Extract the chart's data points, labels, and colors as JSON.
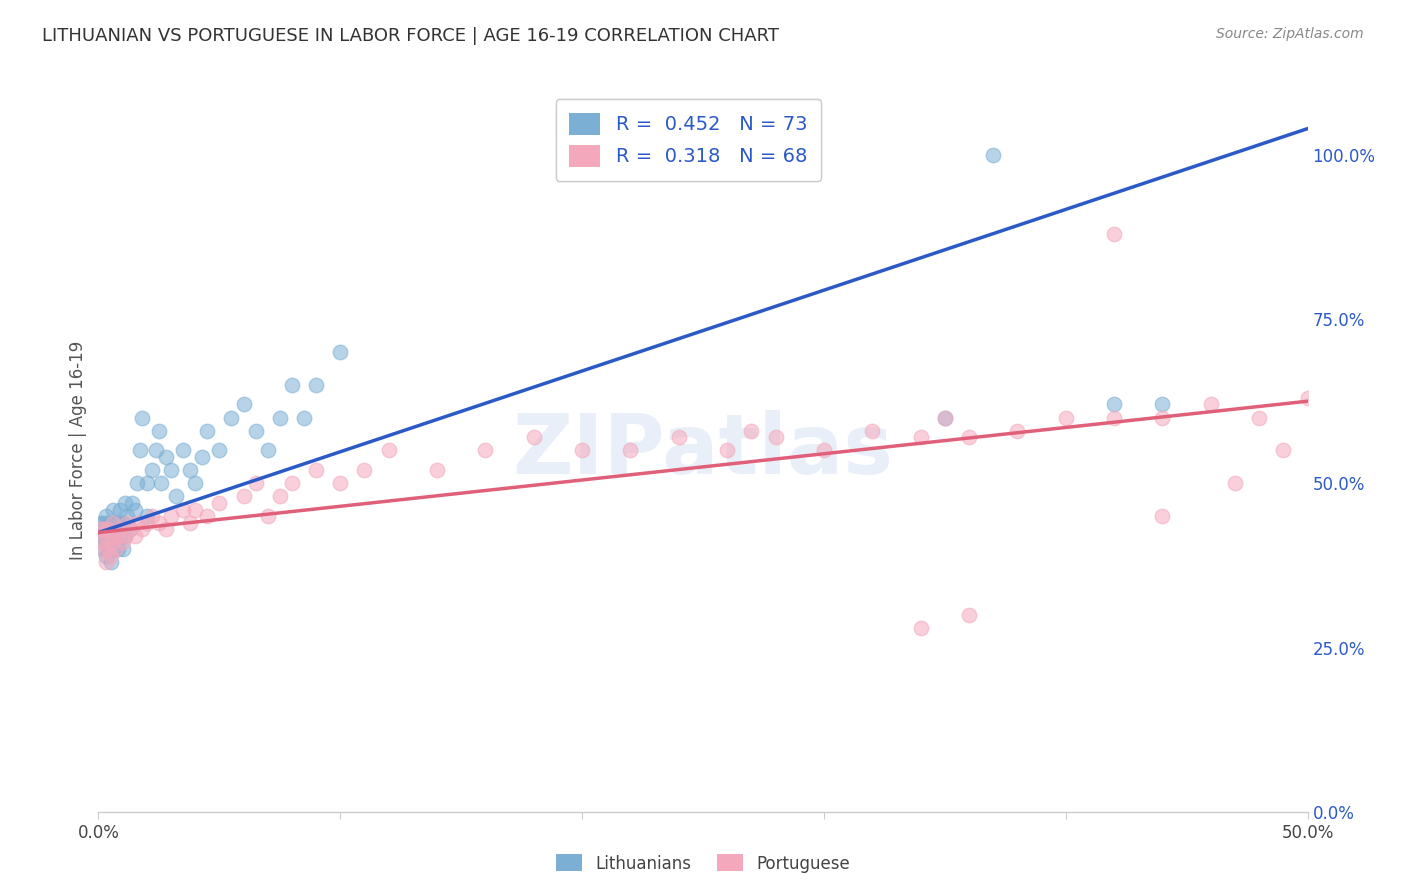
{
  "title": "LITHUANIAN VS PORTUGUESE IN LABOR FORCE | AGE 16-19 CORRELATION CHART",
  "source": "Source: ZipAtlas.com",
  "ylabel": "In Labor Force | Age 16-19",
  "xlim": [
    0.0,
    0.5
  ],
  "ylim": [
    0.0,
    1.1
  ],
  "xticks": [
    0.0,
    0.1,
    0.2,
    0.3,
    0.4,
    0.5
  ],
  "xticklabels": [
    "0.0%",
    "",
    "",
    "",
    "",
    "50.0%"
  ],
  "yticks_right": [
    0.0,
    0.25,
    0.5,
    0.75,
    1.0
  ],
  "yticklabels_right": [
    "0.0%",
    "25.0%",
    "50.0%",
    "75.0%",
    "100.0%"
  ],
  "legend_R_blue": "0.452",
  "legend_N_blue": "73",
  "legend_R_pink": "0.318",
  "legend_N_pink": "68",
  "watermark": "ZIPatlas",
  "blue_color": "#7BAFD4",
  "pink_color": "#F4A8BC",
  "blue_line_color": "#2B5AC8",
  "pink_line_color": "#E0607A",
  "title_color": "#333333",
  "right_tick_color": "#2B5AC8",
  "background_color": "#FFFFFF",
  "grid_color": "#E0E0E0",
  "blue_line_x0": 0.0,
  "blue_line_y0": 0.425,
  "blue_line_x1": 0.5,
  "blue_line_y1": 1.04,
  "pink_line_x0": 0.0,
  "pink_line_y0": 0.425,
  "pink_line_x1": 0.5,
  "pink_line_y1": 0.625,
  "blue_x": [
    0.001,
    0.001,
    0.001,
    0.002,
    0.002,
    0.002,
    0.003,
    0.003,
    0.003,
    0.003,
    0.004,
    0.004,
    0.004,
    0.005,
    0.005,
    0.005,
    0.006,
    0.006,
    0.006,
    0.007,
    0.007,
    0.008,
    0.008,
    0.009,
    0.009,
    0.01,
    0.01,
    0.011,
    0.011,
    0.012,
    0.013,
    0.014,
    0.015,
    0.016,
    0.017,
    0.018,
    0.02,
    0.02,
    0.022,
    0.024,
    0.025,
    0.026,
    0.028,
    0.03,
    0.032,
    0.035,
    0.038,
    0.04,
    0.043,
    0.045,
    0.05,
    0.055,
    0.06,
    0.065,
    0.07,
    0.075,
    0.08,
    0.085,
    0.09,
    0.1,
    0.22,
    0.23,
    0.23,
    0.24,
    0.25,
    0.26,
    0.27,
    0.27,
    0.28,
    0.35,
    0.37,
    0.42,
    0.44
  ],
  "blue_y": [
    0.42,
    0.43,
    0.44,
    0.4,
    0.42,
    0.44,
    0.39,
    0.41,
    0.43,
    0.45,
    0.4,
    0.42,
    0.44,
    0.38,
    0.41,
    0.43,
    0.4,
    0.43,
    0.46,
    0.41,
    0.44,
    0.4,
    0.44,
    0.42,
    0.46,
    0.4,
    0.44,
    0.42,
    0.47,
    0.45,
    0.43,
    0.47,
    0.46,
    0.5,
    0.55,
    0.6,
    0.45,
    0.5,
    0.52,
    0.55,
    0.58,
    0.5,
    0.54,
    0.52,
    0.48,
    0.55,
    0.52,
    0.5,
    0.54,
    0.58,
    0.55,
    0.6,
    0.62,
    0.58,
    0.55,
    0.6,
    0.65,
    0.6,
    0.65,
    0.7,
    1.0,
    1.0,
    1.0,
    1.0,
    1.0,
    1.0,
    1.0,
    1.0,
    1.0,
    0.6,
    1.0,
    0.62,
    0.62
  ],
  "pink_x": [
    0.001,
    0.001,
    0.002,
    0.002,
    0.003,
    0.003,
    0.004,
    0.004,
    0.005,
    0.005,
    0.006,
    0.006,
    0.007,
    0.008,
    0.009,
    0.01,
    0.011,
    0.012,
    0.013,
    0.015,
    0.016,
    0.018,
    0.02,
    0.022,
    0.025,
    0.028,
    0.03,
    0.035,
    0.038,
    0.04,
    0.045,
    0.05,
    0.06,
    0.065,
    0.07,
    0.075,
    0.08,
    0.09,
    0.1,
    0.11,
    0.12,
    0.14,
    0.16,
    0.18,
    0.2,
    0.22,
    0.24,
    0.26,
    0.27,
    0.28,
    0.3,
    0.32,
    0.34,
    0.35,
    0.36,
    0.38,
    0.4,
    0.42,
    0.44,
    0.46,
    0.47,
    0.48,
    0.49,
    0.5,
    0.34,
    0.36,
    0.42,
    0.44
  ],
  "pink_y": [
    0.41,
    0.43,
    0.4,
    0.43,
    0.38,
    0.42,
    0.4,
    0.43,
    0.39,
    0.42,
    0.41,
    0.44,
    0.4,
    0.42,
    0.43,
    0.41,
    0.42,
    0.44,
    0.43,
    0.42,
    0.44,
    0.43,
    0.44,
    0.45,
    0.44,
    0.43,
    0.45,
    0.46,
    0.44,
    0.46,
    0.45,
    0.47,
    0.48,
    0.5,
    0.45,
    0.48,
    0.5,
    0.52,
    0.5,
    0.52,
    0.55,
    0.52,
    0.55,
    0.57,
    0.55,
    0.55,
    0.57,
    0.55,
    0.58,
    0.57,
    0.55,
    0.58,
    0.57,
    0.6,
    0.57,
    0.58,
    0.6,
    0.6,
    0.6,
    0.62,
    0.5,
    0.6,
    0.55,
    0.63,
    0.28,
    0.3,
    0.88,
    0.45
  ]
}
